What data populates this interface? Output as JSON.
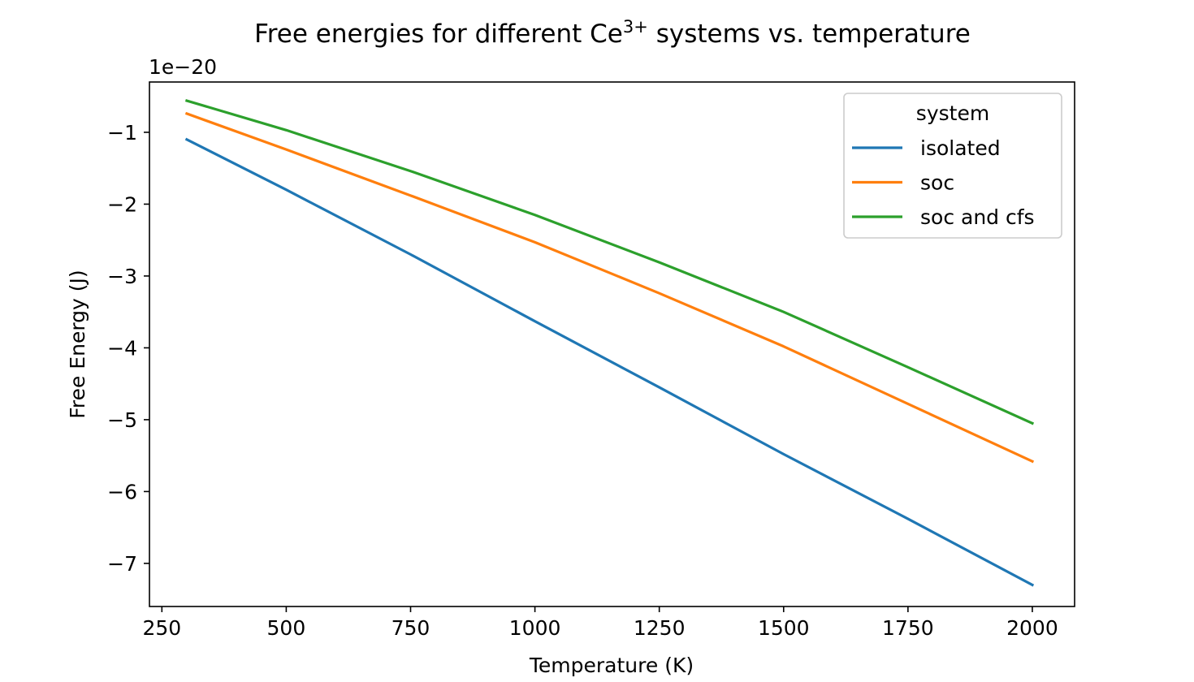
{
  "chart_data": {
    "type": "line",
    "title": "Free energies for different Ce",
    "title_superscript": "3+",
    "title_suffix": " systems vs. temperature",
    "xlabel": "Temperature (K)",
    "ylabel": "Free Energy (J)",
    "y_offset_label": "1e−20",
    "xlim": [
      225,
      2085
    ],
    "ylim": [
      -7.6,
      -0.3
    ],
    "x_ticks": [
      250,
      500,
      750,
      1000,
      1250,
      1500,
      1750,
      2000
    ],
    "x_tick_labels": [
      "250",
      "500",
      "750",
      "1000",
      "1250",
      "1500",
      "1750",
      "2000"
    ],
    "y_ticks": [
      -1,
      -2,
      -3,
      -4,
      -5,
      -6,
      -7
    ],
    "y_tick_labels": [
      "−1",
      "−2",
      "−3",
      "−4",
      "−5",
      "−6",
      "−7"
    ],
    "grid": false,
    "legend": {
      "title": "system",
      "position": "top-right"
    },
    "x": [
      300,
      500,
      750,
      1000,
      1250,
      1500,
      1750,
      2000
    ],
    "series": [
      {
        "name": "isolated",
        "color": "#1f77b4",
        "values": [
          -1.1,
          -1.8,
          -2.7,
          -3.63,
          -4.55,
          -5.48,
          -6.38,
          -7.3
        ]
      },
      {
        "name": "soc",
        "color": "#ff7f0e",
        "values": [
          -0.74,
          -1.24,
          -1.88,
          -2.53,
          -3.24,
          -3.98,
          -4.78,
          -5.58
        ]
      },
      {
        "name": "soc and cfs",
        "color": "#2ca02c",
        "values": [
          -0.56,
          -0.97,
          -1.54,
          -2.15,
          -2.81,
          -3.5,
          -4.27,
          -5.05
        ]
      }
    ]
  }
}
